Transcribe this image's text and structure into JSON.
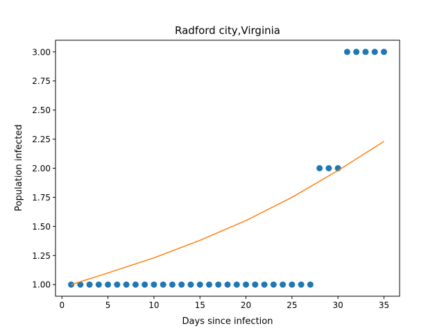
{
  "chart_data": {
    "type": "scatter",
    "title": "Radford city,Virginia",
    "xlabel": "Days since infection",
    "ylabel": "Population infected",
    "xlim": [
      -0.7,
      36.7
    ],
    "ylim": [
      0.9,
      3.1
    ],
    "xticks": [
      0,
      5,
      10,
      15,
      20,
      25,
      30,
      35
    ],
    "xtick_labels": [
      "0",
      "5",
      "10",
      "15",
      "20",
      "25",
      "30",
      "35"
    ],
    "yticks": [
      1.0,
      1.25,
      1.5,
      1.75,
      2.0,
      2.25,
      2.5,
      2.75,
      3.0
    ],
    "ytick_labels": [
      "1.00",
      "1.25",
      "1.50",
      "1.75",
      "2.00",
      "2.25",
      "2.50",
      "2.75",
      "3.00"
    ],
    "grid": false,
    "series": [
      {
        "kind": "scatter",
        "color": "#1f77b4",
        "x": [
          1,
          2,
          3,
          4,
          5,
          6,
          7,
          8,
          9,
          10,
          11,
          12,
          13,
          14,
          15,
          16,
          17,
          18,
          19,
          20,
          21,
          22,
          23,
          24,
          25,
          26,
          27,
          28,
          29,
          30,
          31,
          32,
          33,
          34,
          35
        ],
        "y": [
          1,
          1,
          1,
          1,
          1,
          1,
          1,
          1,
          1,
          1,
          1,
          1,
          1,
          1,
          1,
          1,
          1,
          1,
          1,
          1,
          1,
          1,
          1,
          1,
          1,
          1,
          1,
          2,
          2,
          2,
          3,
          3,
          3,
          3,
          3
        ]
      },
      {
        "kind": "line",
        "color": "#ff7f0e",
        "x": [
          1,
          5,
          10,
          15,
          20,
          25,
          30,
          35
        ],
        "y": [
          1.0,
          1.1,
          1.23,
          1.38,
          1.55,
          1.75,
          1.98,
          2.23
        ]
      }
    ]
  }
}
